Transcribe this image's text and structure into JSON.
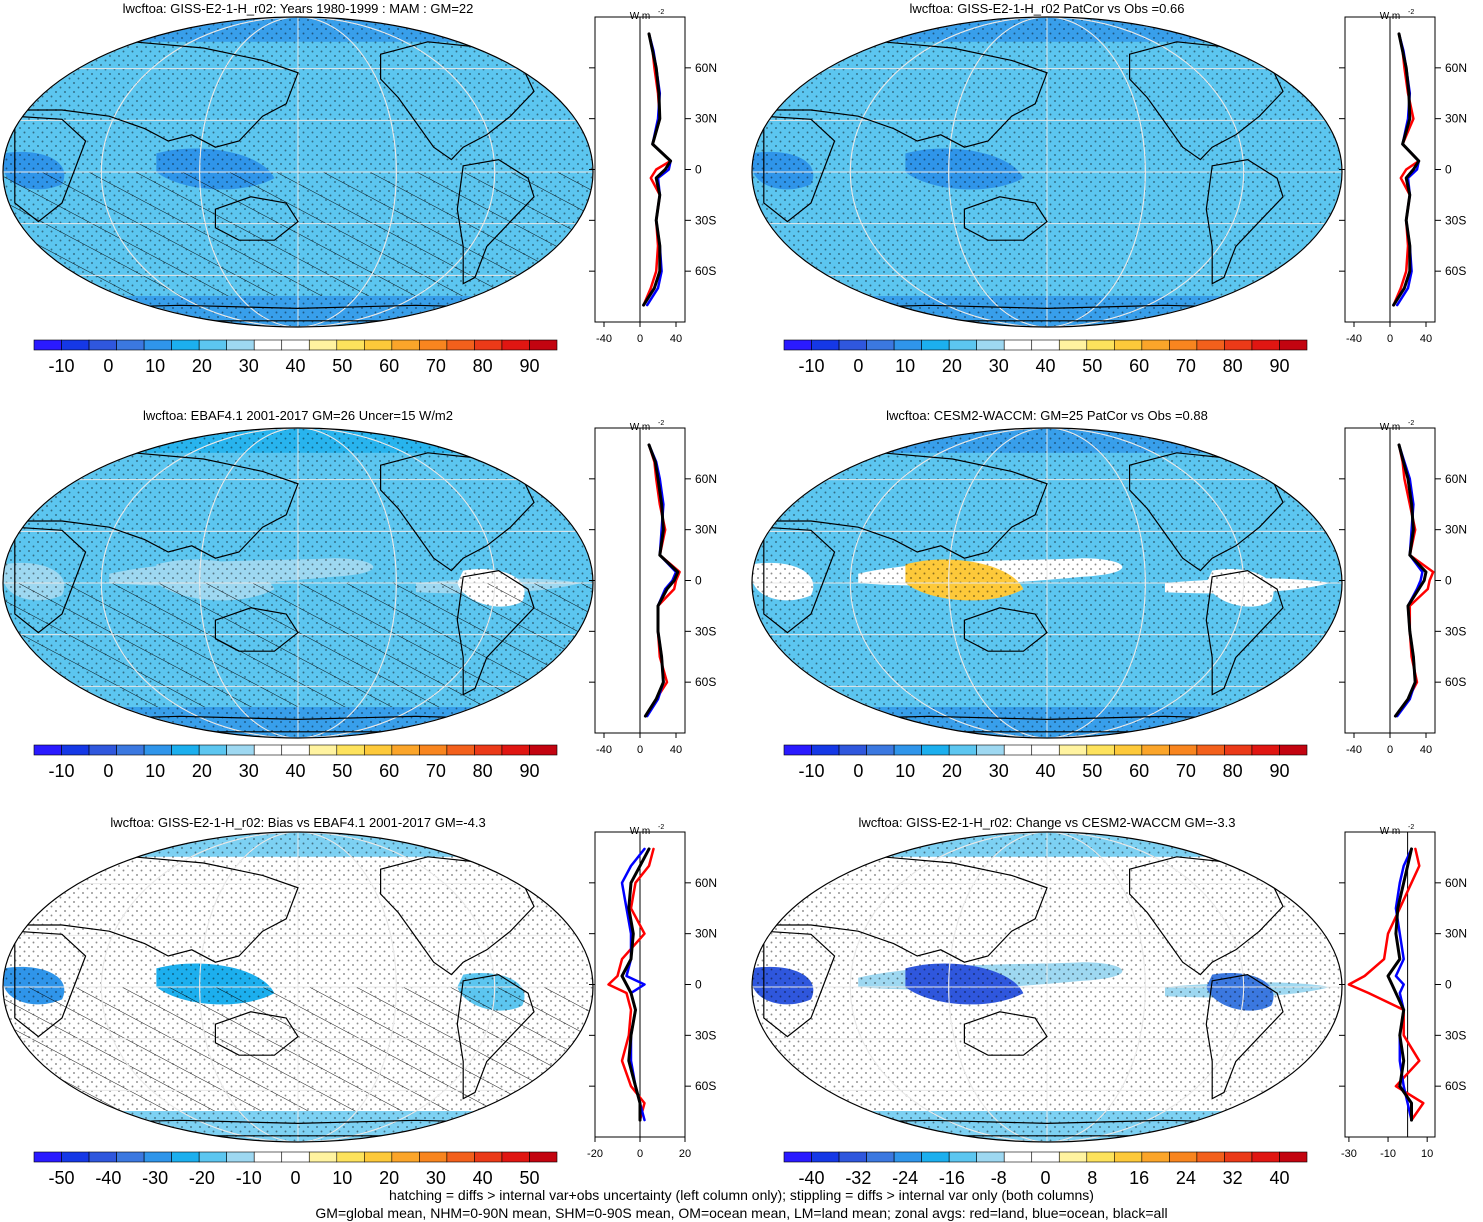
{
  "chart_data": [
    {
      "type": "heatmap",
      "title": "lwcftoa: GISS-E2-1-H_r02: Years 1980-1999 : MAM : GM=22",
      "colorbar": {
        "ticks": [
          "-10",
          "0",
          "10",
          "20",
          "30",
          "40",
          "50",
          "60",
          "70",
          "80",
          "90"
        ],
        "palette": "abs"
      },
      "field": {
        "base": 18,
        "itcz": 22,
        "warm_pool": 8,
        "amazon": 20,
        "africa": 6
      },
      "hatched": true,
      "stippled": true,
      "zonal_avg": {
        "ylabels": [
          "60N",
          "30N",
          "0",
          "30S",
          "60S"
        ],
        "xticks": [
          "-40",
          "0",
          "40"
        ],
        "unit": "W m",
        "unit_sup": "-2",
        "xlim": [
          -50,
          50
        ],
        "series": [
          {
            "name": "land",
            "color": "#ff0000",
            "lat": [
              80,
              70,
              60,
              45,
              30,
              15,
              5,
              0,
              -5,
              -15,
              -30,
              -45,
              -60,
              -70,
              -80
            ],
            "values": [
              10,
              14,
              16,
              20,
              22,
              14,
              34,
              18,
              12,
              22,
              18,
              20,
              18,
              12,
              4
            ]
          },
          {
            "name": "ocean",
            "color": "#0000ff",
            "lat": [
              80,
              70,
              60,
              45,
              30,
              15,
              5,
              0,
              -5,
              -15,
              -30,
              -45,
              -60,
              -70,
              -80
            ],
            "values": [
              10,
              15,
              18,
              22,
              20,
              14,
              34,
              32,
              20,
              22,
              18,
              22,
              24,
              20,
              8
            ]
          },
          {
            "name": "all",
            "color": "#000000",
            "lat": [
              80,
              70,
              60,
              45,
              30,
              15,
              5,
              0,
              -5,
              -15,
              -30,
              -45,
              -60,
              -70,
              -80
            ],
            "values": [
              10,
              14,
              18,
              21,
              22,
              14,
              34,
              28,
              18,
              22,
              18,
              22,
              22,
              16,
              4
            ]
          }
        ]
      }
    },
    {
      "type": "heatmap",
      "title": "lwcftoa: GISS-E2-1-H_r02 PatCor vs Obs =0.66",
      "colorbar": {
        "ticks": [
          "-10",
          "0",
          "10",
          "20",
          "30",
          "40",
          "50",
          "60",
          "70",
          "80",
          "90"
        ],
        "palette": "abs"
      },
      "field": {
        "base": 18,
        "itcz": 22,
        "warm_pool": 8,
        "amazon": 18,
        "africa": 6
      },
      "hatched": false,
      "stippled": true,
      "zonal_avg": {
        "ylabels": [
          "60N",
          "30N",
          "0",
          "30S",
          "60S"
        ],
        "xticks": [
          "-40",
          "0",
          "40"
        ],
        "unit": "W m",
        "unit_sup": "-2",
        "xlim": [
          -50,
          50
        ],
        "series": [
          {
            "name": "land",
            "color": "#ff0000",
            "lat": [
              80,
              70,
              60,
              45,
              30,
              15,
              5,
              0,
              -5,
              -15,
              -30,
              -45,
              -60,
              -70,
              -80
            ],
            "values": [
              10,
              14,
              16,
              20,
              26,
              14,
              32,
              18,
              12,
              22,
              18,
              20,
              18,
              12,
              4
            ]
          },
          {
            "name": "ocean",
            "color": "#0000ff",
            "lat": [
              80,
              70,
              60,
              45,
              30,
              15,
              5,
              0,
              -5,
              -15,
              -30,
              -45,
              -60,
              -70,
              -80
            ],
            "values": [
              10,
              15,
              18,
              22,
              20,
              14,
              32,
              30,
              20,
              22,
              18,
              22,
              24,
              20,
              8
            ]
          },
          {
            "name": "all",
            "color": "#000000",
            "lat": [
              80,
              70,
              60,
              45,
              30,
              15,
              5,
              0,
              -5,
              -15,
              -30,
              -45,
              -60,
              -70,
              -80
            ],
            "values": [
              10,
              14,
              18,
              21,
              22,
              14,
              32,
              26,
              18,
              22,
              18,
              22,
              22,
              16,
              4
            ]
          }
        ]
      }
    },
    {
      "type": "heatmap",
      "title": "lwcftoa: EBAF4.1 2001-2017 GM=26 Uncer=15 W/m2",
      "colorbar": {
        "ticks": [
          "-10",
          "0",
          "10",
          "20",
          "30",
          "40",
          "50",
          "60",
          "70",
          "80",
          "90"
        ],
        "palette": "abs"
      },
      "field": {
        "base": 22,
        "itcz": 30,
        "warm_pool": 30,
        "amazon": 32,
        "africa": 30
      },
      "hatched": true,
      "stippled": true,
      "zonal_avg": {
        "ylabels": [
          "60N",
          "30N",
          "0",
          "30S",
          "60S"
        ],
        "xticks": [
          "-40",
          "0",
          "40"
        ],
        "unit": "W m",
        "unit_sup": "-2",
        "xlim": [
          -50,
          50
        ],
        "series": [
          {
            "name": "land",
            "color": "#ff0000",
            "lat": [
              80,
              70,
              60,
              45,
              30,
              15,
              5,
              0,
              -5,
              -15,
              -30,
              -45,
              -60,
              -70,
              -80
            ],
            "values": [
              10,
              16,
              18,
              22,
              28,
              22,
              44,
              40,
              38,
              20,
              20,
              22,
              30,
              18,
              6
            ]
          },
          {
            "name": "ocean",
            "color": "#0000ff",
            "lat": [
              80,
              70,
              60,
              45,
              30,
              15,
              5,
              0,
              -5,
              -15,
              -30,
              -45,
              -60,
              -70,
              -80
            ],
            "values": [
              10,
              18,
              22,
              26,
              24,
              22,
              40,
              36,
              28,
              20,
              20,
              24,
              26,
              20,
              8
            ]
          },
          {
            "name": "all",
            "color": "#000000",
            "lat": [
              80,
              70,
              60,
              45,
              30,
              15,
              5,
              0,
              -5,
              -15,
              -30,
              -45,
              -60,
              -70,
              -80
            ],
            "values": [
              10,
              17,
              20,
              24,
              26,
              22,
              42,
              38,
              30,
              20,
              20,
              24,
              26,
              18,
              6
            ]
          }
        ]
      }
    },
    {
      "type": "heatmap",
      "title": "lwcftoa: CESM2-WACCM: GM=25 PatCor vs Obs =0.88",
      "colorbar": {
        "ticks": [
          "-10",
          "0",
          "10",
          "20",
          "30",
          "40",
          "50",
          "60",
          "70",
          "80",
          "90"
        ],
        "palette": "abs"
      },
      "field": {
        "base": 20,
        "itcz": 34,
        "warm_pool": 60,
        "amazon": 40,
        "africa": 38
      },
      "hatched": false,
      "stippled": true,
      "zonal_avg": {
        "ylabels": [
          "60N",
          "30N",
          "0",
          "30S",
          "60S"
        ],
        "xticks": [
          "-40",
          "0",
          "40"
        ],
        "unit": "W m",
        "unit_sup": "-2",
        "xlim": [
          -50,
          50
        ],
        "series": [
          {
            "name": "land",
            "color": "#ff0000",
            "lat": [
              80,
              70,
              60,
              45,
              30,
              15,
              5,
              0,
              -5,
              -15,
              -30,
              -45,
              -60,
              -70,
              -80
            ],
            "values": [
              10,
              14,
              16,
              22,
              28,
              22,
              48,
              44,
              42,
              22,
              22,
              24,
              30,
              20,
              6
            ]
          },
          {
            "name": "ocean",
            "color": "#0000ff",
            "lat": [
              80,
              70,
              60,
              45,
              30,
              15,
              5,
              0,
              -5,
              -15,
              -30,
              -45,
              -60,
              -70,
              -80
            ],
            "values": [
              10,
              16,
              22,
              26,
              24,
              22,
              36,
              34,
              30,
              20,
              22,
              26,
              28,
              22,
              8
            ]
          },
          {
            "name": "all",
            "color": "#000000",
            "lat": [
              80,
              70,
              60,
              45,
              30,
              15,
              5,
              0,
              -5,
              -15,
              -30,
              -45,
              -60,
              -70,
              -80
            ],
            "values": [
              10,
              15,
              20,
              24,
              26,
              22,
              40,
              38,
              32,
              20,
              22,
              26,
              28,
              20,
              6
            ]
          }
        ]
      }
    },
    {
      "type": "heatmap",
      "title": "lwcftoa: GISS-E2-1-H_r02: Bias vs EBAF4.1 2001-2017 GM=-4.3",
      "colorbar": {
        "ticks": [
          "-50",
          "-40",
          "-30",
          "-20",
          "-10",
          "0",
          "10",
          "20",
          "30",
          "40",
          "50"
        ],
        "palette": "diff"
      },
      "field": {
        "base": -6,
        "itcz": -2,
        "warm_pool": -28,
        "amazon": -20,
        "africa": -30
      },
      "hatched": true,
      "stippled": true,
      "zonal_avg": {
        "ylabels": [
          "60N",
          "30N",
          "0",
          "30S",
          "60S"
        ],
        "xticks": [
          "-20",
          "0",
          "20"
        ],
        "unit": "W m",
        "unit_sup": "-2",
        "xlim": [
          -20,
          20
        ],
        "series": [
          {
            "name": "land",
            "color": "#ff0000",
            "lat": [
              80,
              70,
              60,
              45,
              30,
              15,
              5,
              0,
              -5,
              -15,
              -30,
              -45,
              -60,
              -70,
              -80
            ],
            "values": [
              6,
              4,
              -2,
              -4,
              2,
              -8,
              -10,
              -14,
              -6,
              -4,
              -5,
              -8,
              -4,
              2,
              0
            ]
          },
          {
            "name": "ocean",
            "color": "#0000ff",
            "lat": [
              80,
              70,
              60,
              45,
              30,
              15,
              5,
              0,
              -5,
              -15,
              -30,
              -45,
              -60,
              -70,
              -80
            ],
            "values": [
              2,
              -4,
              -8,
              -6,
              -4,
              -4,
              -6,
              2,
              -4,
              -2,
              -4,
              -4,
              -2,
              0,
              2
            ]
          },
          {
            "name": "all",
            "color": "#000000",
            "lat": [
              80,
              70,
              60,
              45,
              30,
              15,
              5,
              0,
              -5,
              -15,
              -30,
              -45,
              -60,
              -70,
              -80
            ],
            "values": [
              4,
              0,
              -4,
              -5,
              -3,
              -4,
              -8,
              -6,
              -4,
              -2,
              -4,
              -5,
              -2,
              0,
              0
            ]
          }
        ]
      }
    },
    {
      "type": "heatmap",
      "title": "lwcftoa: GISS-E2-1-H_r02: Change vs CESM2-WACCM GM=-3.3",
      "colorbar": {
        "ticks": [
          "-40",
          "-32",
          "-24",
          "-16",
          "-8",
          "0",
          "8",
          "16",
          "24",
          "32",
          "40"
        ],
        "palette": "diff"
      },
      "field": {
        "base": -4,
        "itcz": -8,
        "warm_pool": -36,
        "amazon": -28,
        "africa": -34
      },
      "hatched": false,
      "stippled": true,
      "zonal_avg": {
        "ylabels": [
          "60N",
          "30N",
          "0",
          "30S",
          "60S"
        ],
        "xticks": [
          "-30",
          "-10",
          "10"
        ],
        "unit": "W m",
        "unit_sup": "-2",
        "xlim": [
          -32,
          14
        ],
        "series": [
          {
            "name": "land",
            "color": "#ff0000",
            "lat": [
              80,
              70,
              60,
              45,
              30,
              15,
              5,
              0,
              -5,
              -15,
              -30,
              -45,
              -60,
              -70,
              -80
            ],
            "values": [
              4,
              6,
              2,
              -4,
              -10,
              -12,
              -22,
              -30,
              -20,
              -2,
              -2,
              6,
              -6,
              8,
              2
            ]
          },
          {
            "name": "ocean",
            "color": "#0000ff",
            "lat": [
              80,
              70,
              60,
              45,
              30,
              15,
              5,
              0,
              -5,
              -15,
              -30,
              -45,
              -60,
              -70,
              -80
            ],
            "values": [
              2,
              -2,
              -4,
              -6,
              -4,
              -2,
              -6,
              -2,
              -4,
              -2,
              -4,
              -4,
              -2,
              0,
              2
            ]
          },
          {
            "name": "all",
            "color": "#000000",
            "lat": [
              80,
              70,
              60,
              45,
              30,
              15,
              5,
              0,
              -5,
              -15,
              -30,
              -45,
              -60,
              -70,
              -80
            ],
            "values": [
              2,
              0,
              -2,
              -5,
              -6,
              -4,
              -10,
              -8,
              -6,
              -2,
              -4,
              -2,
              -4,
              2,
              2
            ]
          }
        ]
      }
    }
  ],
  "palettes": {
    "abs": [
      "#2a1aff",
      "#1538e6",
      "#2f57dd",
      "#3b78e0",
      "#2f95ea",
      "#1cafee",
      "#5cc6f0",
      "#9ed8f1",
      "#ffffff",
      "#ffffff",
      "#fff3a0",
      "#fde25c",
      "#fdc93a",
      "#fba52a",
      "#f8851f",
      "#f3601c",
      "#eb3a18",
      "#e01612",
      "#c30410"
    ],
    "diff": [
      "#2a1aff",
      "#1538e6",
      "#2f57dd",
      "#3b78e0",
      "#2f95ea",
      "#1cafee",
      "#5cc6f0",
      "#9ed8f1",
      "#ffffff",
      "#ffffff",
      "#fff3a0",
      "#fde25c",
      "#fdc93a",
      "#fba52a",
      "#f8851f",
      "#f3601c",
      "#eb3a18",
      "#e01612",
      "#c30410"
    ]
  },
  "footer": {
    "line1": "hatching = diffs > internal var+obs uncertainty (left column only); stippling = diffs > internal var only (both columns)",
    "line2": "GM=global mean, NHM=0-90N mean, SHM=0-90S mean, OM=ocean mean, LM=land mean; zonal avgs: red=land, blue=ocean, black=all"
  }
}
